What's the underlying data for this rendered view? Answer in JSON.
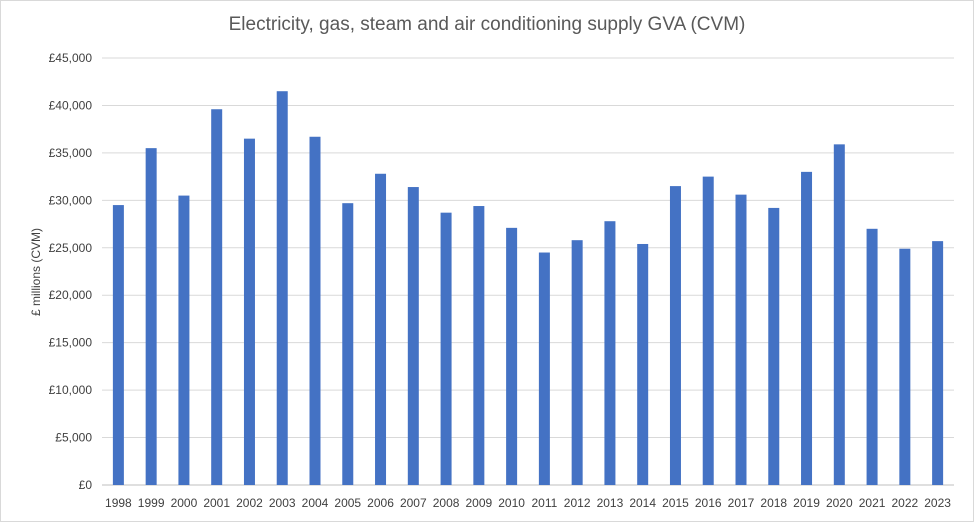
{
  "chart_data": {
    "type": "bar",
    "title": "Electricity, gas, steam and air conditioning supply GVA (CVM)",
    "xlabel": "",
    "ylabel": "£ millions (CVM)",
    "ylim": [
      0,
      45000
    ],
    "yticks": [
      0,
      5000,
      10000,
      15000,
      20000,
      25000,
      30000,
      35000,
      40000,
      45000
    ],
    "ytick_labels": [
      "£0",
      "£5,000",
      "£10,000",
      "£15,000",
      "£20,000",
      "£25,000",
      "£30,000",
      "£35,000",
      "£40,000",
      "£45,000"
    ],
    "grid": true,
    "legend": "none",
    "bar_color": "#4472c4",
    "categories": [
      "1998",
      "1999",
      "2000",
      "2001",
      "2002",
      "2003",
      "2004",
      "2005",
      "2006",
      "2007",
      "2008",
      "2009",
      "2010",
      "2011",
      "2012",
      "2013",
      "2014",
      "2015",
      "2016",
      "2017",
      "2018",
      "2019",
      "2020",
      "2021",
      "2022",
      "2023"
    ],
    "values": [
      29500,
      35500,
      30500,
      39600,
      36500,
      41500,
      36700,
      29700,
      32800,
      31400,
      28700,
      29400,
      27100,
      24500,
      25800,
      27800,
      25400,
      31500,
      32500,
      30600,
      29200,
      33000,
      35900,
      27000,
      24900,
      25700
    ]
  }
}
